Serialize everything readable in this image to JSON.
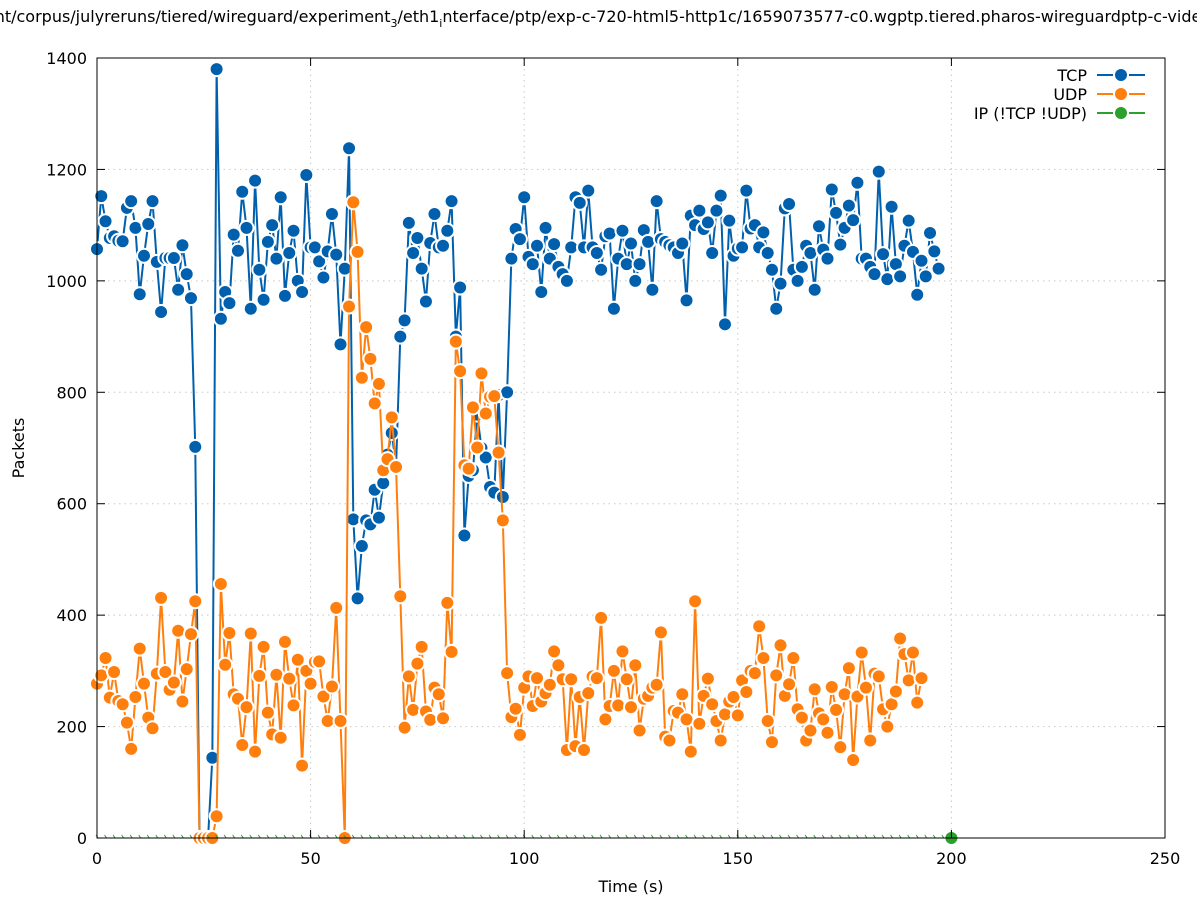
{
  "chart_data": {
    "type": "line",
    "title": "nt/corpus/julyreruns/tiered/wireguard/experiment",
    "title_sub1": "3",
    "title_mid": "/eth1",
    "title_sub2": "i",
    "title_end": "nterface/ptp/exp-c-720-html5-http1c/1659073577-c0.wgptp.tiered.pharos-wireguardptp-c-vide",
    "xlabel": "Time (s)",
    "ylabel": "Packets",
    "xlim": [
      0,
      250
    ],
    "ylim": [
      0,
      1400
    ],
    "xticks": [
      "0",
      "50",
      "100",
      "150",
      "200",
      "250"
    ],
    "yticks": [
      "0",
      "200",
      "400",
      "600",
      "800",
      "1000",
      "1200",
      "1400"
    ],
    "grid": true,
    "legend_position": "top-right",
    "colors": {
      "TCP": "#0060ad",
      "UDP": "#ff7f0e",
      "IP": "#2ca02c"
    },
    "series": [
      {
        "name": "TCP",
        "x_start": 0,
        "x_step": 1,
        "values": [
          1057,
          1152,
          1107,
          1077,
          1080,
          1072,
          1071,
          1131,
          1143,
          1095,
          976,
          1045,
          1102,
          1143,
          1034,
          944,
          1041,
          1041,
          1041,
          984,
          1064,
          1012,
          969,
          702,
          0,
          0,
          0,
          144,
          1380,
          932,
          980,
          960,
          1083,
          1054,
          1160,
          1095,
          950,
          1180,
          1020,
          966,
          1070,
          1100,
          1040,
          1150,
          973,
          1050,
          1090,
          1000,
          980,
          1190,
          1060,
          1060,
          1035,
          1006,
          1053,
          1120,
          1047,
          886,
          1022,
          1238,
          572,
          430,
          524,
          570,
          563,
          625,
          575,
          637,
          688,
          727,
          666,
          900,
          929,
          1104,
          1050,
          1077,
          1022,
          963,
          1068,
          1120,
          1060,
          1063,
          1090,
          1143,
          900,
          988,
          543,
          650,
          660,
          760,
          700,
          683,
          630,
          620,
          795,
          612,
          800,
          1040,
          1093,
          1075,
          1150,
          1043,
          1030,
          1063,
          980,
          1095,
          1040,
          1066,
          1025,
          1012,
          1000,
          1060,
          1150,
          1140,
          1060,
          1162,
          1060,
          1050,
          1020,
          1080,
          1085,
          950,
          1040,
          1090,
          1030,
          1067,
          1000,
          1030,
          1091,
          1070,
          984,
          1143,
          1075,
          1070,
          1064,
          1060,
          1050,
          1067,
          965,
          1117,
          1100,
          1126,
          1093,
          1105,
          1050,
          1126,
          1153,
          922,
          1108,
          1045,
          1058,
          1060,
          1162,
          1094,
          1100,
          1060,
          1087,
          1050,
          1020,
          950,
          995,
          1130,
          1138,
          1020,
          1000,
          1025,
          1063,
          1050,
          984,
          1098,
          1056,
          1040,
          1164,
          1122,
          1065,
          1095,
          1135,
          1109,
          1176,
          1040,
          1040,
          1025,
          1012,
          1196,
          1048,
          1003,
          1133,
          1030,
          1008,
          1063,
          1108,
          1052,
          975,
          1036,
          1008,
          1086,
          1053,
          1022
        ]
      },
      {
        "name": "UDP",
        "x_start": 0,
        "x_step": 1,
        "values": [
          277,
          292,
          323,
          252,
          298,
          246,
          240,
          207,
          160,
          253,
          340,
          277,
          216,
          197,
          295,
          431,
          298,
          266,
          279,
          372,
          245,
          303,
          366,
          425,
          0,
          0,
          0,
          0,
          39,
          456,
          311,
          368,
          258,
          250,
          167,
          235,
          367,
          155,
          291,
          343,
          225,
          186,
          293,
          180,
          352,
          286,
          238,
          320,
          130,
          300,
          277,
          316,
          317,
          254,
          210,
          272,
          413,
          210,
          0,
          954,
          1141,
          1052,
          826,
          917,
          860,
          780,
          815,
          660,
          680,
          755,
          666,
          434,
          198,
          290,
          230,
          313,
          343,
          227,
          212,
          270,
          258,
          215,
          422,
          334,
          891,
          838,
          669,
          663,
          773,
          701,
          834,
          762,
          792,
          793,
          692,
          570,
          296,
          217,
          232,
          185,
          270,
          290,
          237,
          287,
          245,
          260,
          275,
          335,
          310,
          285,
          158,
          285,
          165,
          253,
          158,
          260,
          290,
          287,
          395,
          213,
          237,
          300,
          238,
          335,
          285,
          235,
          310,
          193,
          250,
          255,
          270,
          275,
          369,
          182,
          175,
          228,
          225,
          258,
          213,
          155,
          425,
          205,
          255,
          286,
          240,
          210,
          175,
          222,
          245,
          253,
          220,
          283,
          262,
          300,
          296,
          380,
          323,
          210,
          172,
          292,
          346,
          255,
          276,
          323,
          231,
          216,
          175,
          193,
          267,
          224,
          213,
          189,
          271,
          230,
          163,
          258,
          305,
          140,
          254,
          333,
          270,
          175,
          295,
          290,
          231,
          200,
          240,
          263,
          358,
          330,
          283,
          333,
          243,
          287
        ]
      },
      {
        "name": "IP (!TCP  !UDP)",
        "x_start": 0,
        "x_step": 1,
        "values_constant": 0,
        "count": 201,
        "marker_visible_at": 200
      }
    ],
    "legend": [
      "TCP",
      "UDP",
      "IP (!TCP  !UDP)"
    ]
  }
}
